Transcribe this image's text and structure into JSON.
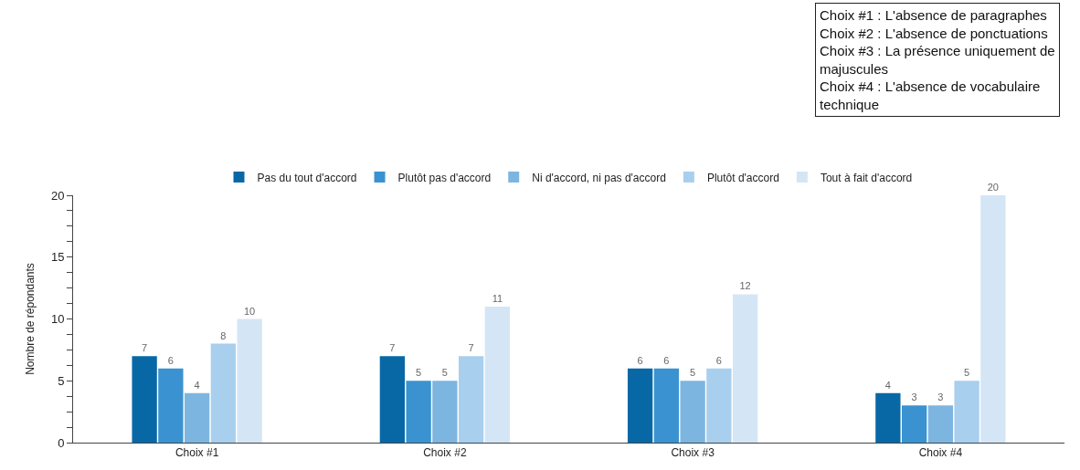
{
  "chart_data": {
    "type": "bar",
    "ylabel": "Nombre de répondants",
    "categories": [
      "Choix #1",
      "Choix #2",
      "Choix #3",
      "Choix #4"
    ],
    "series": [
      {
        "name": "Pas du tout d'accord",
        "color": "#0868a6",
        "values": [
          7,
          7,
          6,
          4
        ]
      },
      {
        "name": "Plutôt pas d'accord",
        "color": "#3a93d0",
        "values": [
          6,
          5,
          6,
          3
        ]
      },
      {
        "name": "Ni d'accord, ni pas d'accord",
        "color": "#7db5e1",
        "values": [
          4,
          5,
          5,
          3
        ]
      },
      {
        "name": "Plutôt d'accord",
        "color": "#a9cfee",
        "values": [
          8,
          7,
          6,
          5
        ]
      },
      {
        "name": "Tout à fait d'accord",
        "color": "#d4e6f6",
        "values": [
          10,
          11,
          12,
          20
        ]
      }
    ],
    "ylim": [
      0,
      20
    ],
    "yticks": [
      0,
      {
        "value": 1.25,
        "label": null
      },
      {
        "value": 2.5,
        "label": null
      },
      {
        "value": 3.75,
        "label": null
      },
      5,
      {
        "value": 6.25,
        "label": null
      },
      {
        "value": 7.5,
        "label": null
      },
      {
        "value": 8.75,
        "label": null
      },
      10,
      {
        "value": 11.25,
        "label": null
      },
      {
        "value": 12.5,
        "label": null
      },
      {
        "value": 13.75,
        "label": null
      },
      15,
      {
        "value": 16.25,
        "label": null
      },
      {
        "value": 17.5,
        "label": null
      },
      {
        "value": 18.75,
        "label": null
      },
      20
    ],
    "data_labels": true,
    "legend": "top",
    "annotations": [
      "Choix #1 : L'absence de paragraphes",
      "Choix #2 : L'absence de ponctuations",
      "Choix #3 : La présence uniquement de majuscules",
      "Choix #4 : L'absence de vocabulaire technique"
    ]
  }
}
